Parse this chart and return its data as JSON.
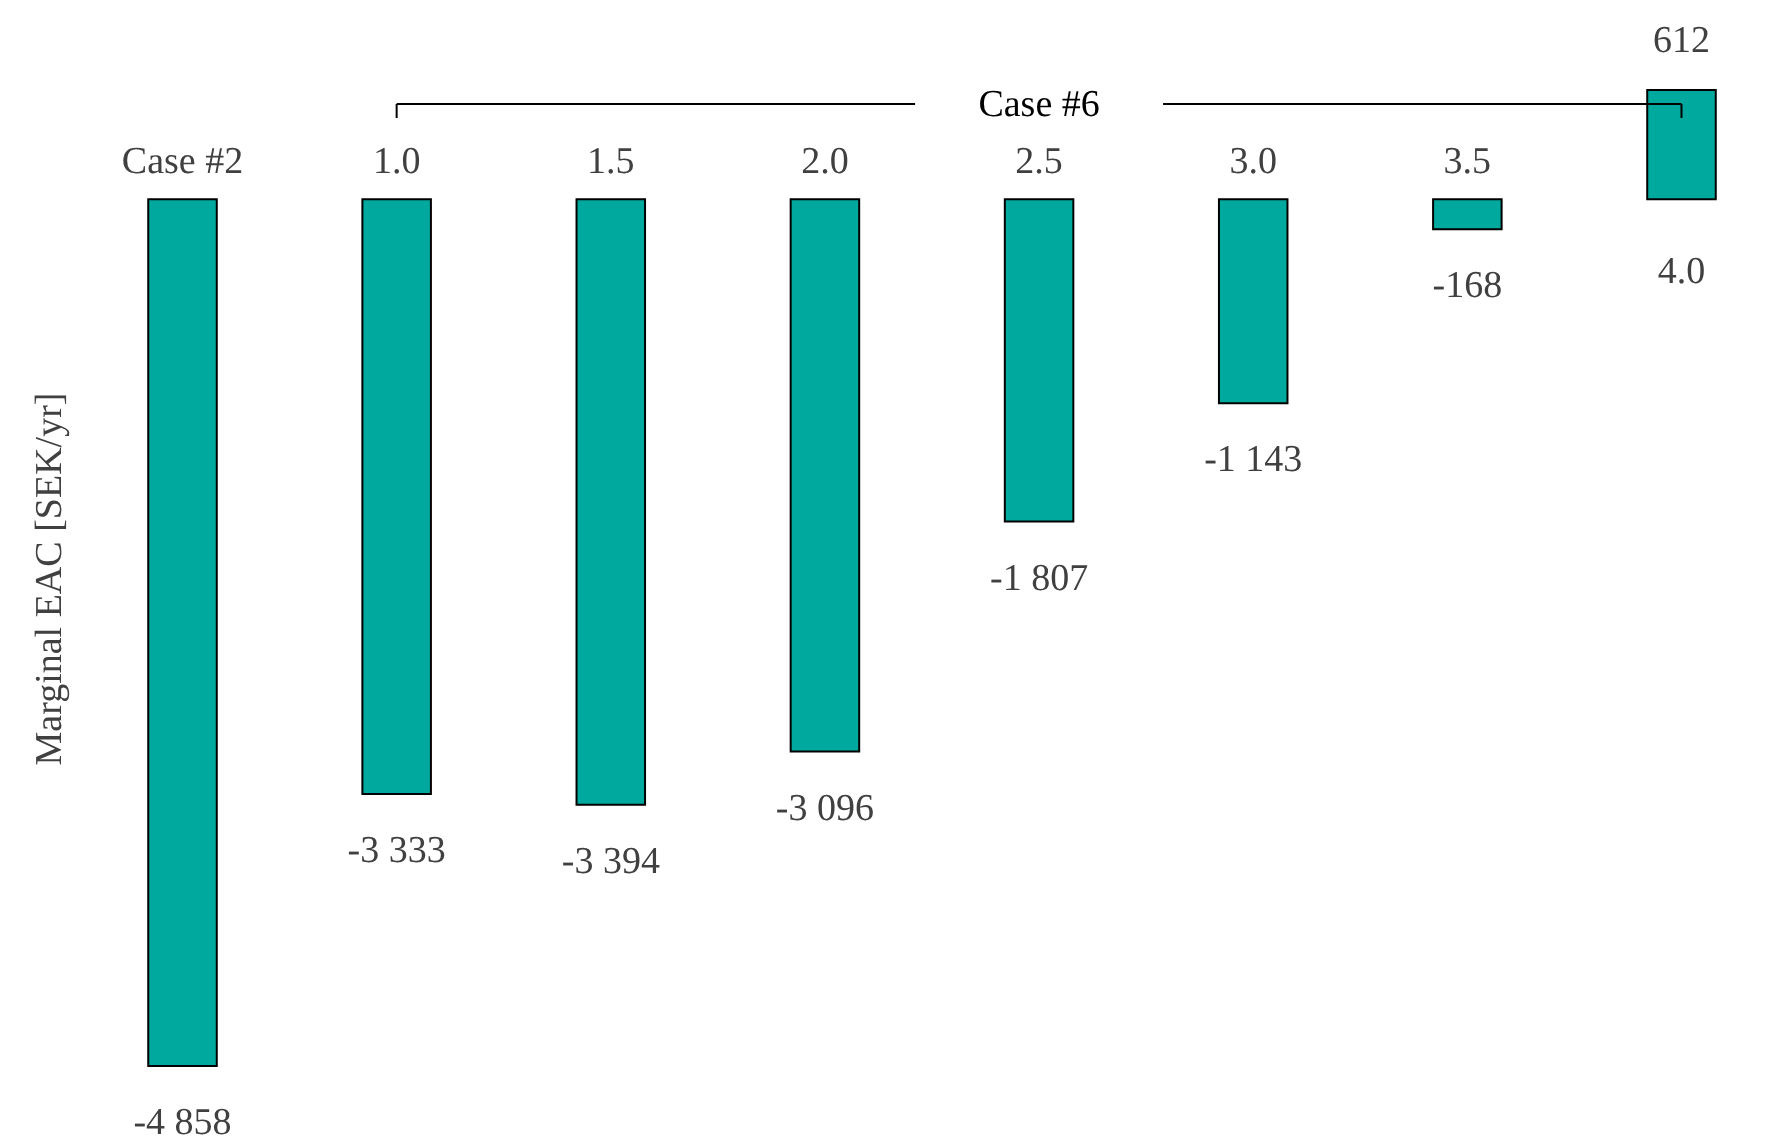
{
  "chart_data": {
    "type": "bar",
    "ylabel": "Marginal EAC [SEK/yr]",
    "categories": [
      "Case #2",
      "1.0",
      "1.5",
      "2.0",
      "2.5",
      "3.0",
      "3.5",
      "4.0"
    ],
    "values": [
      -4858,
      -3333,
      -3394,
      -3096,
      -1807,
      -1143,
      -168,
      612
    ],
    "value_labels": [
      "-4 858",
      "-3 333",
      "-3 394",
      "-3 096",
      "-1 807",
      "-1 143",
      "-168",
      "612"
    ],
    "color": "#00a99d",
    "annotations": [
      "Case #6"
    ]
  }
}
